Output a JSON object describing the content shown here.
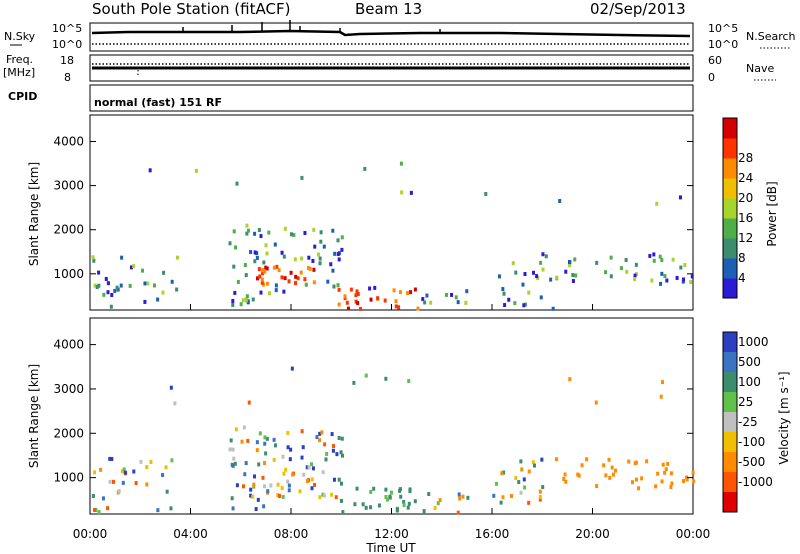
{
  "header": {
    "station": "South Pole Station (fitACF)",
    "beam": "Beam 13",
    "date": "02/Sep/2013"
  },
  "panels": {
    "nsky": {
      "label": "N.Sky",
      "ticks": [
        "10^5",
        "10^0"
      ],
      "right_label": "N.Search",
      "right_ticks": [
        "10^5",
        "10^0"
      ]
    },
    "freq": {
      "label_line1": "Freq.",
      "label_line2": "[MHz]",
      "ticks": [
        "18",
        "8"
      ],
      "right_label": "Nave",
      "right_ticks": [
        "60",
        "0"
      ]
    },
    "cpid": {
      "label": "CPID",
      "mode": "normal (fast) 151 RF"
    }
  },
  "chart_data": [
    {
      "type": "heatmap",
      "title": "",
      "ylabel": "Slant Range [km]",
      "ylim": [
        180,
        4600
      ],
      "y_ticks": [
        "1000",
        "2000",
        "3000",
        "4000"
      ],
      "colorbar": {
        "label": "Power [dB]",
        "ticks": [
          "4",
          "8",
          "12",
          "16",
          "20",
          "24",
          "28"
        ],
        "colors": [
          "#2b1bd6",
          "#1c5fb4",
          "#3c8c6e",
          "#4fae4a",
          "#a7d62a",
          "#f0c000",
          "#ff8c00",
          "#ff3300",
          "#d40000"
        ]
      }
    },
    {
      "type": "heatmap",
      "title": "",
      "ylabel": "Slant Range [km]",
      "ylim": [
        180,
        4600
      ],
      "y_ticks": [
        "1000",
        "2000",
        "3000",
        "4000"
      ],
      "colorbar": {
        "label": "Velocity [m s⁻¹]",
        "ticks": [
          "1000",
          "500",
          "100",
          "25",
          "-25",
          "-100",
          "-500",
          "-1000"
        ],
        "colors": [
          "#2b3fc0",
          "#3a72c4",
          "#3c8c6e",
          "#5fc04a",
          "#c0c0c0",
          "#f0c000",
          "#ff8c00",
          "#ff5500",
          "#e00000"
        ]
      }
    }
  ],
  "xaxis": {
    "label": "Time UT",
    "ticks": [
      "00:00",
      "04:00",
      "08:00",
      "12:00",
      "16:00",
      "20:00",
      "00:00"
    ]
  }
}
